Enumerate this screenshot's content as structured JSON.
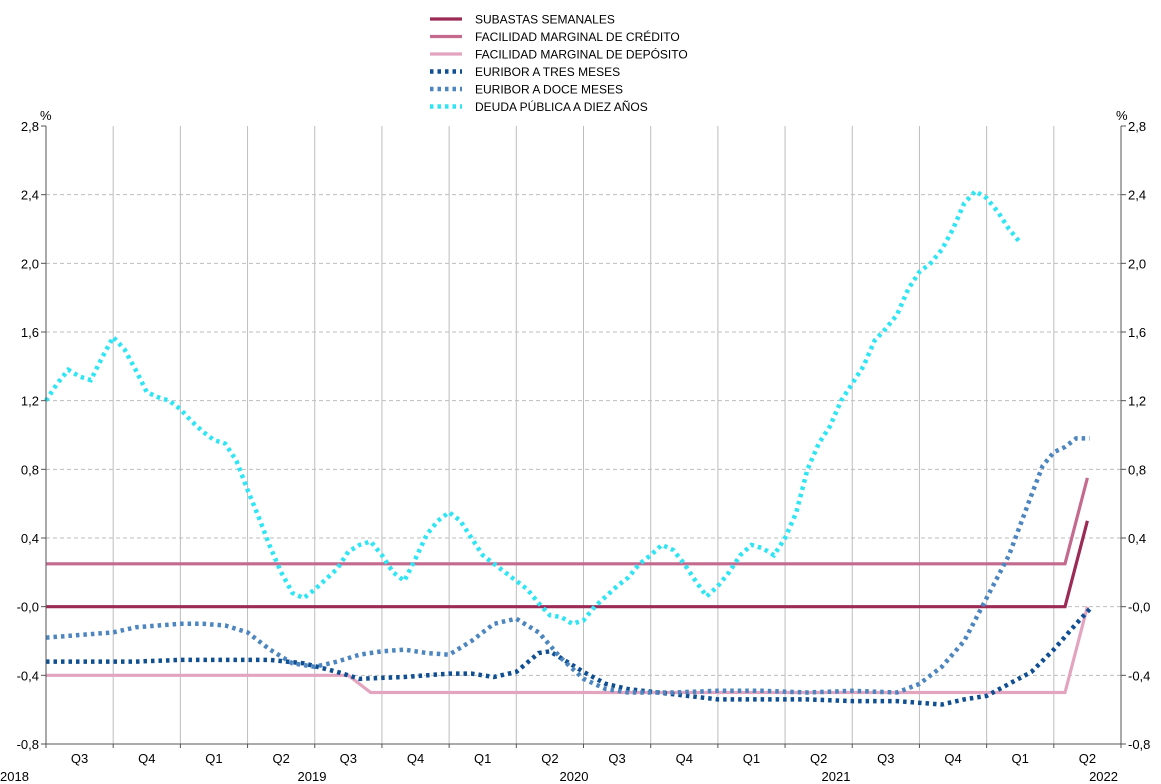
{
  "chart_data": {
    "type": "line",
    "y_unit": "%",
    "ylim": [
      -0.8,
      2.8
    ],
    "y_ticks": [
      "2,8",
      "2,4",
      "2,0",
      "1,6",
      "1,2",
      "0,8",
      "0,4",
      "-0,0",
      "-0,4",
      "-0,8"
    ],
    "y_tick_values": [
      2.8,
      2.4,
      2.0,
      1.6,
      1.2,
      0.8,
      0.4,
      0.0,
      -0.4,
      -0.8
    ],
    "grid": true,
    "legend_position": "top-center",
    "quarters": [
      "Q3",
      "Q4",
      "Q1",
      "Q2",
      "Q3",
      "Q4",
      "Q1",
      "Q2",
      "Q3",
      "Q4",
      "Q1",
      "Q2",
      "Q3",
      "Q4",
      "Q1",
      "Q2"
    ],
    "years": [
      "2018",
      "2019",
      "2020",
      "2021",
      "2022"
    ],
    "x_unit": "months since 2018-07",
    "series": [
      {
        "name": "SUBASTAS SEMANALES",
        "style": "solid",
        "color": "#9b2a55",
        "width": 3.2,
        "points": [
          [
            0,
            0.0
          ],
          [
            45.5,
            0.0
          ],
          [
            46.5,
            0.5
          ]
        ]
      },
      {
        "name": "FACILIDAD MARGINAL DE CRÉDITO",
        "style": "solid",
        "color": "#c46a8e",
        "width": 3.2,
        "points": [
          [
            0,
            0.25
          ],
          [
            45.5,
            0.25
          ],
          [
            46.5,
            0.75
          ]
        ]
      },
      {
        "name": "FACILIDAD MARGINAL DE DEPÓSITO",
        "style": "solid",
        "color": "#e3a4bf",
        "width": 3.2,
        "points": [
          [
            0,
            -0.4
          ],
          [
            13.5,
            -0.4
          ],
          [
            14.5,
            -0.5
          ],
          [
            45.5,
            -0.5
          ],
          [
            46.5,
            0.0
          ]
        ]
      },
      {
        "name": "EURIBOR A TRES MESES",
        "style": "dotted",
        "color": "#0f4f92",
        "width": 4.5,
        "points": [
          [
            0,
            -0.32
          ],
          [
            2,
            -0.32
          ],
          [
            4,
            -0.32
          ],
          [
            6,
            -0.31
          ],
          [
            8,
            -0.31
          ],
          [
            10,
            -0.31
          ],
          [
            11.5,
            -0.33
          ],
          [
            13,
            -0.38
          ],
          [
            14,
            -0.42
          ],
          [
            16,
            -0.41
          ],
          [
            18,
            -0.39
          ],
          [
            19,
            -0.39
          ],
          [
            20,
            -0.41
          ],
          [
            21,
            -0.38
          ],
          [
            22,
            -0.27
          ],
          [
            22.5,
            -0.26
          ],
          [
            23,
            -0.3
          ],
          [
            24,
            -0.38
          ],
          [
            25,
            -0.45
          ],
          [
            26,
            -0.48
          ],
          [
            28,
            -0.51
          ],
          [
            30,
            -0.54
          ],
          [
            32,
            -0.54
          ],
          [
            34,
            -0.54
          ],
          [
            36,
            -0.55
          ],
          [
            38,
            -0.55
          ],
          [
            40,
            -0.57
          ],
          [
            41,
            -0.54
          ],
          [
            42,
            -0.52
          ],
          [
            43,
            -0.45
          ],
          [
            44,
            -0.38
          ],
          [
            45,
            -0.25
          ],
          [
            46,
            -0.1
          ],
          [
            46.7,
            0.0
          ]
        ]
      },
      {
        "name": "EURIBOR A DOCE MESES",
        "style": "dotted",
        "color": "#4d86bf",
        "width": 4.5,
        "points": [
          [
            0,
            -0.18
          ],
          [
            1,
            -0.17
          ],
          [
            2,
            -0.16
          ],
          [
            3,
            -0.15
          ],
          [
            4,
            -0.12
          ],
          [
            5,
            -0.11
          ],
          [
            6,
            -0.1
          ],
          [
            7,
            -0.1
          ],
          [
            8,
            -0.11
          ],
          [
            9,
            -0.15
          ],
          [
            10,
            -0.25
          ],
          [
            11,
            -0.33
          ],
          [
            12,
            -0.35
          ],
          [
            13,
            -0.32
          ],
          [
            14,
            -0.28
          ],
          [
            15,
            -0.26
          ],
          [
            16,
            -0.25
          ],
          [
            17,
            -0.27
          ],
          [
            18,
            -0.28
          ],
          [
            19,
            -0.2
          ],
          [
            20,
            -0.1
          ],
          [
            21,
            -0.07
          ],
          [
            22,
            -0.15
          ],
          [
            23,
            -0.3
          ],
          [
            24,
            -0.42
          ],
          [
            25,
            -0.48
          ],
          [
            26,
            -0.5
          ],
          [
            27,
            -0.5
          ],
          [
            28,
            -0.5
          ],
          [
            30,
            -0.49
          ],
          [
            32,
            -0.49
          ],
          [
            34,
            -0.5
          ],
          [
            36,
            -0.49
          ],
          [
            38,
            -0.5
          ],
          [
            39,
            -0.45
          ],
          [
            40,
            -0.35
          ],
          [
            41,
            -0.2
          ],
          [
            42,
            0.05
          ],
          [
            43,
            0.3
          ],
          [
            44,
            0.65
          ],
          [
            44.5,
            0.82
          ],
          [
            45,
            0.9
          ],
          [
            45.5,
            0.93
          ],
          [
            46,
            0.98
          ],
          [
            46.6,
            0.98
          ]
        ]
      },
      {
        "name": "DEUDA PÚBLICA A DIEZ AÑOS",
        "style": "dotted",
        "color": "#2fe5f3",
        "width": 4.5,
        "points": [
          [
            0,
            1.2
          ],
          [
            0.5,
            1.3
          ],
          [
            1,
            1.38
          ],
          [
            1.5,
            1.34
          ],
          [
            2,
            1.32
          ],
          [
            2.5,
            1.45
          ],
          [
            3,
            1.57
          ],
          [
            3.5,
            1.5
          ],
          [
            4,
            1.38
          ],
          [
            4.5,
            1.25
          ],
          [
            5,
            1.22
          ],
          [
            5.5,
            1.2
          ],
          [
            6,
            1.15
          ],
          [
            6.5,
            1.08
          ],
          [
            7,
            1.02
          ],
          [
            7.5,
            0.97
          ],
          [
            8,
            0.95
          ],
          [
            8.5,
            0.85
          ],
          [
            9,
            0.68
          ],
          [
            9.5,
            0.52
          ],
          [
            10,
            0.35
          ],
          [
            10.5,
            0.2
          ],
          [
            11,
            0.08
          ],
          [
            11.5,
            0.05
          ],
          [
            12,
            0.1
          ],
          [
            12.5,
            0.16
          ],
          [
            13,
            0.22
          ],
          [
            13.5,
            0.32
          ],
          [
            14,
            0.36
          ],
          [
            14.5,
            0.38
          ],
          [
            15,
            0.3
          ],
          [
            15.5,
            0.2
          ],
          [
            16,
            0.15
          ],
          [
            16.5,
            0.28
          ],
          [
            17,
            0.42
          ],
          [
            17.5,
            0.5
          ],
          [
            18,
            0.55
          ],
          [
            18.5,
            0.5
          ],
          [
            19,
            0.4
          ],
          [
            19.5,
            0.3
          ],
          [
            20,
            0.25
          ],
          [
            20.5,
            0.2
          ],
          [
            21,
            0.15
          ],
          [
            21.5,
            0.1
          ],
          [
            22,
            0.02
          ],
          [
            22.5,
            -0.05
          ],
          [
            23,
            -0.06
          ],
          [
            23.5,
            -0.1
          ],
          [
            24,
            -0.08
          ],
          [
            24.5,
            0.0
          ],
          [
            25,
            0.06
          ],
          [
            25.5,
            0.12
          ],
          [
            26,
            0.17
          ],
          [
            26.5,
            0.25
          ],
          [
            27,
            0.3
          ],
          [
            27.5,
            0.36
          ],
          [
            28,
            0.33
          ],
          [
            28.5,
            0.25
          ],
          [
            29,
            0.15
          ],
          [
            29.5,
            0.06
          ],
          [
            30,
            0.12
          ],
          [
            30.5,
            0.2
          ],
          [
            31,
            0.3
          ],
          [
            31.5,
            0.36
          ],
          [
            32,
            0.34
          ],
          [
            32.5,
            0.3
          ],
          [
            33,
            0.4
          ],
          [
            33.5,
            0.55
          ],
          [
            34,
            0.8
          ],
          [
            34.5,
            0.95
          ],
          [
            35,
            1.05
          ],
          [
            35.5,
            1.2
          ],
          [
            36,
            1.3
          ],
          [
            36.5,
            1.4
          ],
          [
            37,
            1.55
          ],
          [
            37.5,
            1.62
          ],
          [
            38,
            1.7
          ],
          [
            38.5,
            1.85
          ],
          [
            39,
            1.95
          ],
          [
            39.5,
            2.0
          ],
          [
            40,
            2.08
          ],
          [
            40.5,
            2.2
          ],
          [
            41,
            2.35
          ],
          [
            41.5,
            2.42
          ],
          [
            42,
            2.38
          ],
          [
            42.5,
            2.3
          ],
          [
            43,
            2.2
          ],
          [
            43.5,
            2.12
          ]
        ]
      }
    ]
  }
}
